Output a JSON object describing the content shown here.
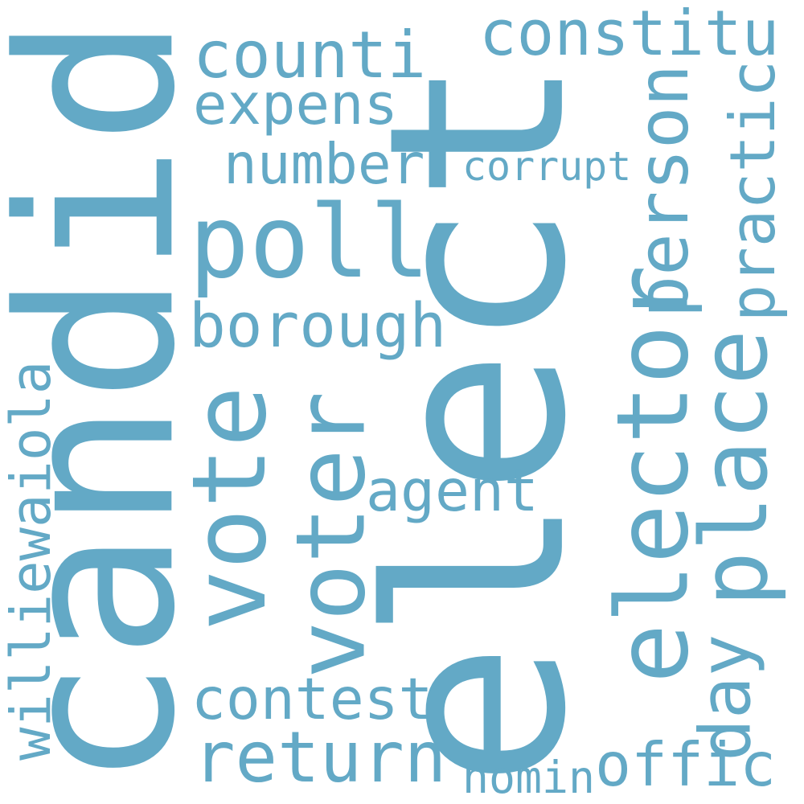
{
  "word_color": "#63a9c6",
  "words": [
    {
      "text": "candid",
      "vertical": true
    },
    {
      "text": "elect",
      "vertical": true
    },
    {
      "text": "poll",
      "vertical": false
    },
    {
      "text": "constitu",
      "vertical": false
    },
    {
      "text": "counti",
      "vertical": false
    },
    {
      "text": "expens",
      "vertical": false
    },
    {
      "text": "number",
      "vertical": false
    },
    {
      "text": "corrupt",
      "vertical": false
    },
    {
      "text": "person",
      "vertical": true
    },
    {
      "text": "practic",
      "vertical": true
    },
    {
      "text": "elector",
      "vertical": true
    },
    {
      "text": "place",
      "vertical": true
    },
    {
      "text": "borough",
      "vertical": false
    },
    {
      "text": "vote",
      "vertical": true
    },
    {
      "text": "voter",
      "vertical": true
    },
    {
      "text": "agent",
      "vertical": false
    },
    {
      "text": "williewaiola",
      "vertical": true
    },
    {
      "text": "contest",
      "vertical": false
    },
    {
      "text": "return",
      "vertical": false
    },
    {
      "text": "day",
      "vertical": true
    },
    {
      "text": "offic",
      "vertical": false
    },
    {
      "text": "nomin",
      "vertical": false
    }
  ]
}
